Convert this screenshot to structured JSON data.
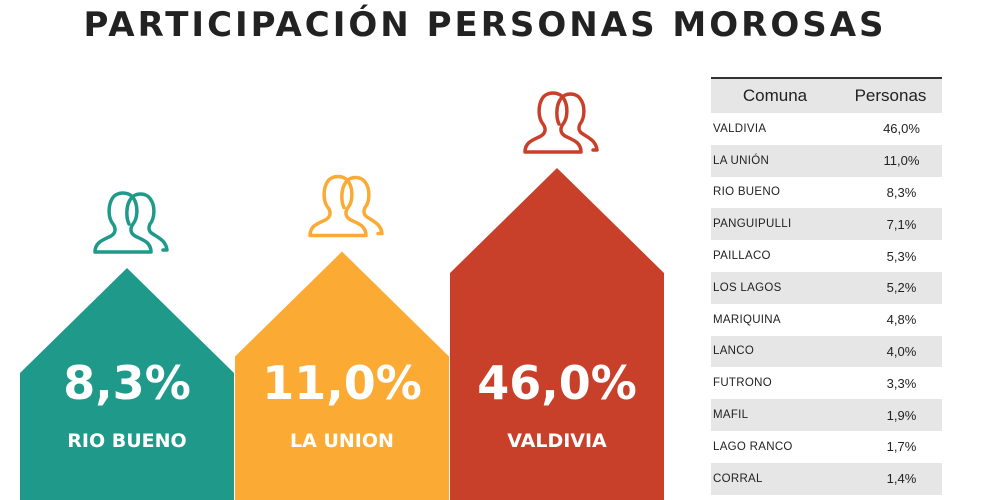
{
  "title": "PARTICIPACIÓN PERSONAS MOROSAS",
  "colors": {
    "rio_bueno": "#1f9a8a",
    "la_union": "#fbab33",
    "valdivia": "#c9402a",
    "table_stripe": "#e6e6e6"
  },
  "chart_data": {
    "type": "bar",
    "value_unit": "%",
    "categories": [
      "RIO BUENO",
      "LA UNION",
      "VALDIVIA"
    ],
    "values": [
      8.3,
      11.0,
      46.0
    ],
    "labels": [
      "8,3%",
      "11,0%",
      "46,0%"
    ],
    "colors": [
      "#1f9a8a",
      "#fbab33",
      "#c9402a"
    ],
    "icon": "people-outline-icon"
  },
  "table": {
    "headers": [
      "Comuna",
      "Personas"
    ],
    "rows": [
      {
        "comuna": "VALDIVIA",
        "personas": "46,0%"
      },
      {
        "comuna": "LA UNIÓN",
        "personas": "11,0%"
      },
      {
        "comuna": "RIO BUENO",
        "personas": "8,3%"
      },
      {
        "comuna": "PANGUIPULLI",
        "personas": "7,1%"
      },
      {
        "comuna": "PAILLACO",
        "personas": "5,3%"
      },
      {
        "comuna": "LOS LAGOS",
        "personas": "5,2%"
      },
      {
        "comuna": "MARIQUINA",
        "personas": "4,8%"
      },
      {
        "comuna": "LANCO",
        "personas": "4,0%"
      },
      {
        "comuna": "FUTRONO",
        "personas": "3,3%"
      },
      {
        "comuna": "MAFIL",
        "personas": "1,9%"
      },
      {
        "comuna": "LAGO RANCO",
        "personas": "1,7%"
      },
      {
        "comuna": "CORRAL",
        "personas": "1,4%"
      }
    ]
  }
}
